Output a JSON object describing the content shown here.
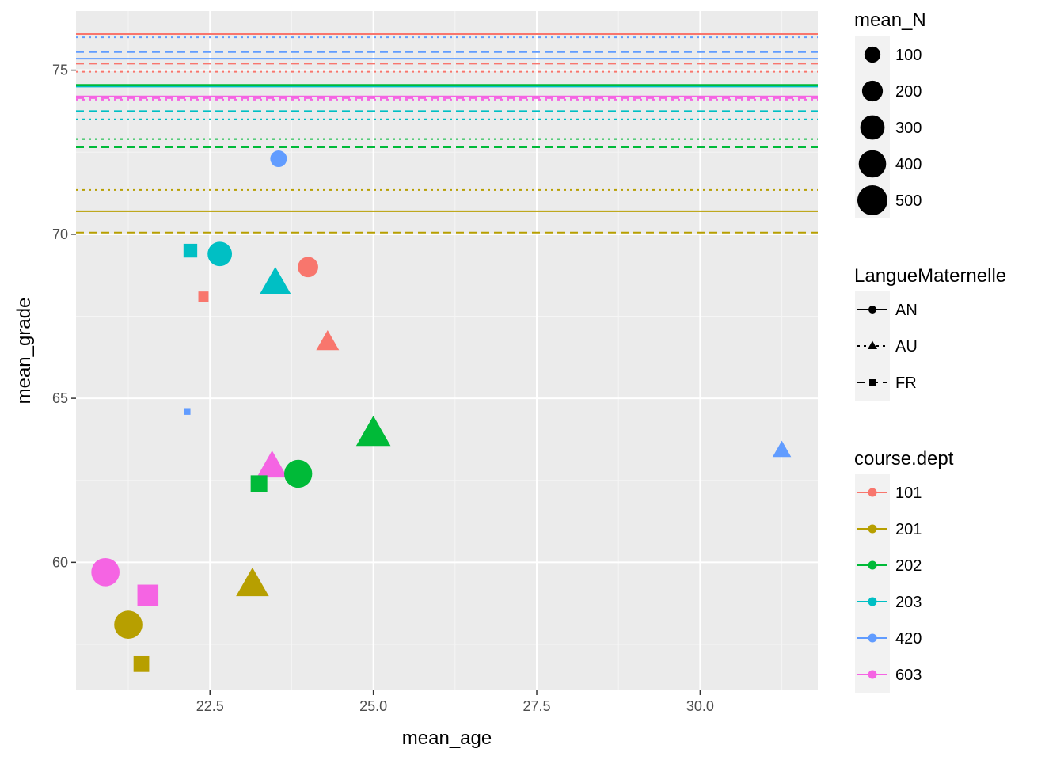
{
  "chart_data": {
    "type": "scatter",
    "xlabel": "mean_age",
    "ylabel": "mean_grade",
    "xlim": [
      20.45,
      31.8
    ],
    "ylim": [
      56.1,
      76.8
    ],
    "x_ticks": [
      22.5,
      25.0,
      27.5,
      30.0
    ],
    "x_tick_labels": [
      "22.5",
      "25.0",
      "27.5",
      "30.0"
    ],
    "y_ticks": [
      60,
      65,
      70,
      75
    ],
    "y_tick_labels": [
      "60",
      "65",
      "70",
      "75"
    ],
    "grid": true,
    "legend_placement": "right",
    "colors": {
      "101": "#F8766D",
      "201": "#B79F00",
      "202": "#00BA38",
      "203": "#00BFC4",
      "420": "#619CFF",
      "603": "#F564E3"
    },
    "hlines": [
      {
        "y": 76.1,
        "dept": "101",
        "lang": "AN"
      },
      {
        "y": 76.0,
        "dept": "420",
        "lang": "AU"
      },
      {
        "y": 75.55,
        "dept": "420",
        "lang": "FR"
      },
      {
        "y": 75.35,
        "dept": "420",
        "lang": "AN"
      },
      {
        "y": 75.2,
        "dept": "101",
        "lang": "FR"
      },
      {
        "y": 74.95,
        "dept": "101",
        "lang": "AU"
      },
      {
        "y": 74.55,
        "dept": "202",
        "lang": "AN"
      },
      {
        "y": 74.5,
        "dept": "203",
        "lang": "AN"
      },
      {
        "y": 74.2,
        "dept": "603",
        "lang": "AN"
      },
      {
        "y": 74.15,
        "dept": "603",
        "lang": "FR"
      },
      {
        "y": 74.1,
        "dept": "603",
        "lang": "AU"
      },
      {
        "y": 73.75,
        "dept": "203",
        "lang": "FR"
      },
      {
        "y": 73.5,
        "dept": "203",
        "lang": "AU"
      },
      {
        "y": 72.9,
        "dept": "202",
        "lang": "AU"
      },
      {
        "y": 72.65,
        "dept": "202",
        "lang": "FR"
      },
      {
        "y": 71.35,
        "dept": "201",
        "lang": "AU"
      },
      {
        "y": 70.7,
        "dept": "201",
        "lang": "AN"
      },
      {
        "y": 70.05,
        "dept": "201",
        "lang": "FR"
      }
    ],
    "points": [
      {
        "x": 23.55,
        "y": 72.3,
        "dept": "420",
        "lang": "AN",
        "n": 110
      },
      {
        "x": 22.65,
        "y": 69.4,
        "dept": "203",
        "lang": "AN",
        "n": 300
      },
      {
        "x": 22.2,
        "y": 69.5,
        "dept": "203",
        "lang": "FR",
        "n": 120
      },
      {
        "x": 24.0,
        "y": 69.0,
        "dept": "101",
        "lang": "AN",
        "n": 190
      },
      {
        "x": 23.5,
        "y": 68.5,
        "dept": "203",
        "lang": "AU",
        "n": 340
      },
      {
        "x": 22.4,
        "y": 68.1,
        "dept": "101",
        "lang": "FR",
        "n": 50
      },
      {
        "x": 24.3,
        "y": 66.7,
        "dept": "101",
        "lang": "AU",
        "n": 160
      },
      {
        "x": 22.15,
        "y": 64.6,
        "dept": "420",
        "lang": "FR",
        "n": 10
      },
      {
        "x": 25.0,
        "y": 63.9,
        "dept": "202",
        "lang": "AU",
        "n": 450
      },
      {
        "x": 31.25,
        "y": 63.4,
        "dept": "420",
        "lang": "AU",
        "n": 90
      },
      {
        "x": 23.45,
        "y": 62.9,
        "dept": "603",
        "lang": "AU",
        "n": 340
      },
      {
        "x": 23.85,
        "y": 62.7,
        "dept": "202",
        "lang": "AN",
        "n": 420
      },
      {
        "x": 23.25,
        "y": 62.4,
        "dept": "202",
        "lang": "FR",
        "n": 200
      },
      {
        "x": 23.15,
        "y": 59.3,
        "dept": "201",
        "lang": "AU",
        "n": 400
      },
      {
        "x": 20.9,
        "y": 59.7,
        "dept": "603",
        "lang": "AN",
        "n": 430
      },
      {
        "x": 21.55,
        "y": 59.0,
        "dept": "603",
        "lang": "FR",
        "n": 360
      },
      {
        "x": 21.25,
        "y": 58.1,
        "dept": "201",
        "lang": "AN",
        "n": 430
      },
      {
        "x": 21.45,
        "y": 56.9,
        "dept": "201",
        "lang": "FR",
        "n": 170
      }
    ],
    "legends": {
      "size": {
        "title": "mean_N",
        "values": [
          100,
          200,
          300,
          400,
          500
        ],
        "labels": [
          "100",
          "200",
          "300",
          "400",
          "500"
        ]
      },
      "linetype": {
        "title": "LangueMaternelle",
        "items": [
          {
            "label": "AN",
            "shape": "circle",
            "dash": "solid"
          },
          {
            "label": "AU",
            "shape": "triangle",
            "dash": "dotted"
          },
          {
            "label": "FR",
            "shape": "square",
            "dash": "dashed"
          }
        ]
      },
      "color": {
        "title": "course.dept",
        "items": [
          "101",
          "201",
          "202",
          "203",
          "420",
          "603"
        ]
      }
    }
  }
}
